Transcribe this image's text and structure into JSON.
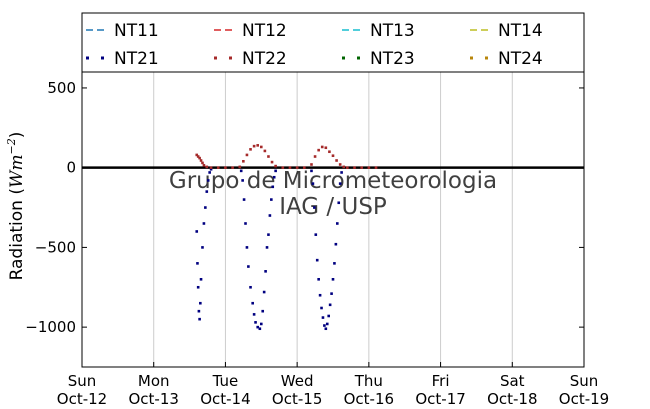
{
  "chart_data": {
    "type": "scatter",
    "title": "",
    "ylabel": "Radiation (",
    "ylabel_math": "Wm",
    "ylabel_exp": "−2",
    "ylabel_close": ")",
    "xlabel": "",
    "ylim": [
      -1250,
      600
    ],
    "xlim": [
      0,
      7
    ],
    "grid": "vertical",
    "legend_position": "top",
    "watermark_line1": "Grupo de Micrometeorologia",
    "watermark_line2": "IAG / USP",
    "x_ticks": [
      {
        "day": "Sun",
        "date": "Oct-12",
        "x": 0
      },
      {
        "day": "Mon",
        "date": "Oct-13",
        "x": 1
      },
      {
        "day": "Tue",
        "date": "Oct-14",
        "x": 2
      },
      {
        "day": "Wed",
        "date": "Oct-15",
        "x": 3
      },
      {
        "day": "Thu",
        "date": "Oct-16",
        "x": 4
      },
      {
        "day": "Fri",
        "date": "Oct-17",
        "x": 5
      },
      {
        "day": "Sat",
        "date": "Oct-18",
        "x": 6
      },
      {
        "day": "Sun",
        "date": "Oct-19",
        "x": 7
      }
    ],
    "y_ticks": [
      {
        "value": 500,
        "label": "500"
      },
      {
        "value": 0,
        "label": "0"
      },
      {
        "value": -500,
        "label": "−500"
      },
      {
        "value": -1000,
        "label": "−1000"
      }
    ],
    "zero_line": true,
    "series": [
      {
        "name": "NT11",
        "style": "dashed",
        "color": "#1f77b4",
        "points": []
      },
      {
        "name": "NT12",
        "style": "dashed",
        "color": "#d62728",
        "points": []
      },
      {
        "name": "NT13",
        "style": "dashed",
        "color": "#17becf",
        "points": []
      },
      {
        "name": "NT14",
        "style": "dashed",
        "color": "#bcbd22",
        "points": []
      },
      {
        "name": "NT21",
        "style": "dots",
        "color": "#000080",
        "points": [
          [
            1.6,
            -400
          ],
          [
            1.61,
            -600
          ],
          [
            1.62,
            -750
          ],
          [
            1.63,
            -900
          ],
          [
            1.64,
            -950
          ],
          [
            1.65,
            -850
          ],
          [
            1.66,
            -700
          ],
          [
            1.68,
            -500
          ],
          [
            1.7,
            -350
          ],
          [
            1.72,
            -250
          ],
          [
            1.74,
            -150
          ],
          [
            1.76,
            -80
          ],
          [
            1.78,
            -30
          ],
          [
            1.8,
            -10
          ],
          [
            2.22,
            -20
          ],
          [
            2.24,
            -80
          ],
          [
            2.26,
            -200
          ],
          [
            2.28,
            -350
          ],
          [
            2.3,
            -500
          ],
          [
            2.32,
            -620
          ],
          [
            2.35,
            -750
          ],
          [
            2.38,
            -850
          ],
          [
            2.4,
            -920
          ],
          [
            2.42,
            -970
          ],
          [
            2.45,
            -1000
          ],
          [
            2.48,
            -1010
          ],
          [
            2.5,
            -980
          ],
          [
            2.52,
            -900
          ],
          [
            2.54,
            -780
          ],
          [
            2.56,
            -650
          ],
          [
            2.58,
            -500
          ],
          [
            2.6,
            -420
          ],
          [
            2.62,
            -300
          ],
          [
            2.64,
            -200
          ],
          [
            2.66,
            -120
          ],
          [
            2.68,
            -60
          ],
          [
            2.7,
            -20
          ],
          [
            3.2,
            -20
          ],
          [
            3.22,
            -100
          ],
          [
            3.24,
            -250
          ],
          [
            3.26,
            -420
          ],
          [
            3.28,
            -580
          ],
          [
            3.3,
            -700
          ],
          [
            3.32,
            -800
          ],
          [
            3.34,
            -880
          ],
          [
            3.36,
            -940
          ],
          [
            3.38,
            -990
          ],
          [
            3.4,
            -1010
          ],
          [
            3.42,
            -980
          ],
          [
            3.44,
            -930
          ],
          [
            3.46,
            -860
          ],
          [
            3.48,
            -790
          ],
          [
            3.5,
            -700
          ],
          [
            3.52,
            -600
          ],
          [
            3.54,
            -480
          ],
          [
            3.56,
            -350
          ],
          [
            3.58,
            -220
          ],
          [
            3.6,
            -100
          ],
          [
            3.62,
            -30
          ]
        ]
      },
      {
        "name": "NT22",
        "style": "dots",
        "color": "#a52a2a",
        "points": [
          [
            1.6,
            80
          ],
          [
            1.62,
            70
          ],
          [
            1.64,
            60
          ],
          [
            1.66,
            45
          ],
          [
            1.68,
            30
          ],
          [
            1.7,
            15
          ],
          [
            1.74,
            5
          ],
          [
            1.8,
            0
          ],
          [
            1.9,
            0
          ],
          [
            2.0,
            0
          ],
          [
            2.1,
            0
          ],
          [
            2.2,
            5
          ],
          [
            2.25,
            40
          ],
          [
            2.3,
            80
          ],
          [
            2.35,
            115
          ],
          [
            2.4,
            135
          ],
          [
            2.45,
            140
          ],
          [
            2.5,
            130
          ],
          [
            2.55,
            105
          ],
          [
            2.6,
            70
          ],
          [
            2.65,
            35
          ],
          [
            2.7,
            10
          ],
          [
            2.8,
            0
          ],
          [
            2.9,
            0
          ],
          [
            3.0,
            0
          ],
          [
            3.1,
            0
          ],
          [
            3.2,
            20
          ],
          [
            3.25,
            70
          ],
          [
            3.3,
            110
          ],
          [
            3.35,
            130
          ],
          [
            3.4,
            125
          ],
          [
            3.45,
            100
          ],
          [
            3.5,
            75
          ],
          [
            3.55,
            45
          ],
          [
            3.6,
            20
          ],
          [
            3.65,
            5
          ],
          [
            3.7,
            0
          ],
          [
            3.8,
            0
          ],
          [
            3.9,
            0
          ],
          [
            4.0,
            0
          ],
          [
            4.1,
            0
          ]
        ]
      },
      {
        "name": "NT23",
        "style": "dots",
        "color": "#006400",
        "points": []
      },
      {
        "name": "NT24",
        "style": "dots",
        "color": "#b8860b",
        "points": []
      }
    ]
  }
}
